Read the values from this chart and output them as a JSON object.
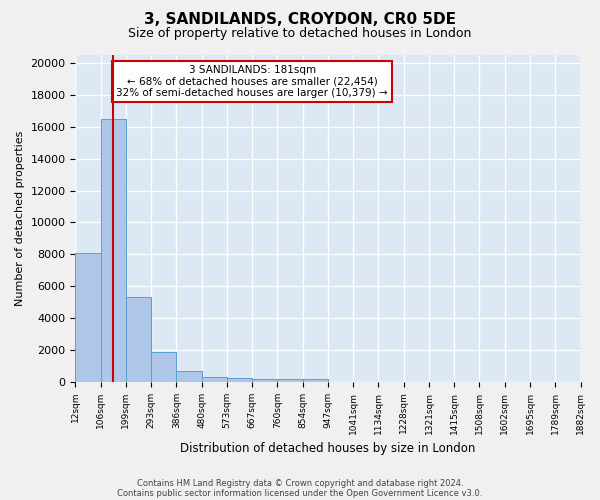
{
  "title1": "3, SANDILANDS, CROYDON, CR0 5DE",
  "title2": "Size of property relative to detached houses in London",
  "xlabel": "Distribution of detached houses by size in London",
  "ylabel": "Number of detached properties",
  "bin_labels": [
    "12sqm",
    "106sqm",
    "199sqm",
    "293sqm",
    "386sqm",
    "480sqm",
    "573sqm",
    "667sqm",
    "760sqm",
    "854sqm",
    "947sqm",
    "1041sqm",
    "1134sqm",
    "1228sqm",
    "1321sqm",
    "1415sqm",
    "1508sqm",
    "1602sqm",
    "1695sqm",
    "1789sqm",
    "1882sqm"
  ],
  "bar_heights": [
    8100,
    16500,
    5300,
    1850,
    700,
    300,
    220,
    200,
    175,
    150,
    0,
    0,
    0,
    0,
    0,
    0,
    0,
    0,
    0,
    0
  ],
  "bar_color": "#aec6e8",
  "bar_edge_color": "#5a9fd4",
  "background_color": "#dde8f5",
  "grid_color": "#ffffff",
  "annotation_text": "3 SANDILANDS: 181sqm\n← 68% of detached houses are smaller (22,454)\n32% of semi-detached houses are larger (10,379) →",
  "annotation_box_color": "#ffffff",
  "annotation_box_edge_color": "#cc0000",
  "vline_color": "#cc0000",
  "vline_x": 1.5,
  "ylim": [
    0,
    20500
  ],
  "yticks": [
    0,
    2000,
    4000,
    6000,
    8000,
    10000,
    12000,
    14000,
    16000,
    18000,
    20000
  ],
  "footnote1": "Contains HM Land Registry data © Crown copyright and database right 2024.",
  "footnote2": "Contains public sector information licensed under the Open Government Licence v3.0.",
  "fig_facecolor": "#f0f0f0"
}
